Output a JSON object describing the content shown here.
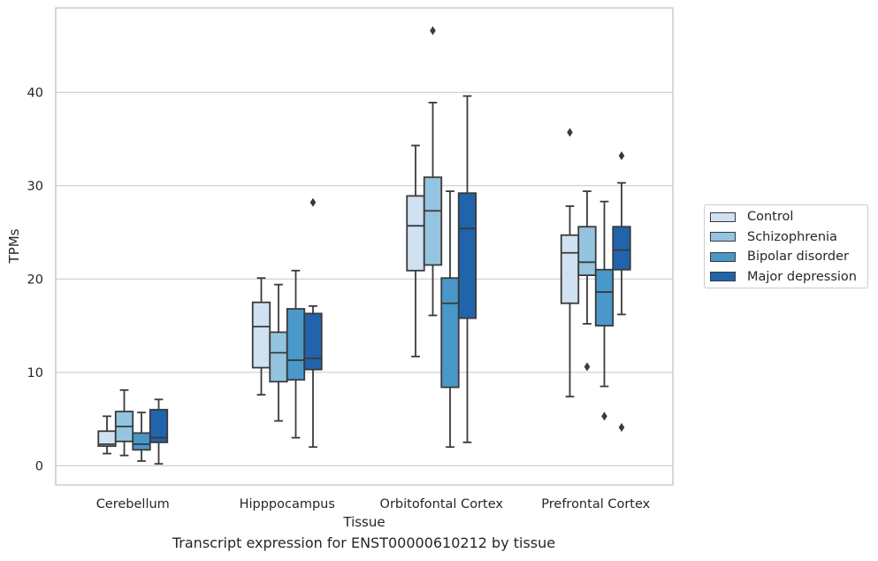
{
  "figure": {
    "caption": "Transcript expression for ENST00000610212 by tissue"
  },
  "chart_data": {
    "type": "boxplot",
    "xlabel": "Tissue",
    "ylabel": "TPMs",
    "ylim": [
      -2,
      49
    ],
    "yticks": [
      0,
      10,
      20,
      30,
      40
    ],
    "grid": "horizontal",
    "legend_position": "right",
    "categories": [
      "Cerebellum",
      "Hipppocampus",
      "Orbitofontal Cortex",
      "Prefrontal Cortex"
    ],
    "series": [
      {
        "name": "Control",
        "color": "#d0e1f2",
        "boxes": [
          {
            "whislo": 1.3,
            "q1": 2.1,
            "med": 2.3,
            "q3": 3.7,
            "whishi": 5.3,
            "fliers": []
          },
          {
            "whislo": 7.6,
            "q1": 10.5,
            "med": 14.9,
            "q3": 17.5,
            "whishi": 20.1,
            "fliers": []
          },
          {
            "whislo": 11.7,
            "q1": 20.9,
            "med": 25.7,
            "q3": 28.9,
            "whishi": 34.3,
            "fliers": []
          },
          {
            "whislo": 7.4,
            "q1": 17.4,
            "med": 22.8,
            "q3": 24.7,
            "whishi": 27.8,
            "fliers": [
              35.7
            ]
          }
        ]
      },
      {
        "name": "Schizophrenia",
        "color": "#94c4df",
        "boxes": [
          {
            "whislo": 1.1,
            "q1": 2.6,
            "med": 4.2,
            "q3": 5.8,
            "whishi": 8.1,
            "fliers": []
          },
          {
            "whislo": 4.8,
            "q1": 9.0,
            "med": 12.1,
            "q3": 14.3,
            "whishi": 19.4,
            "fliers": []
          },
          {
            "whislo": 16.1,
            "q1": 21.5,
            "med": 27.3,
            "q3": 30.9,
            "whishi": 38.9,
            "fliers": [
              46.6
            ]
          },
          {
            "whislo": 15.2,
            "q1": 20.4,
            "med": 21.8,
            "q3": 25.6,
            "whishi": 29.4,
            "fliers": [
              10.6
            ]
          }
        ]
      },
      {
        "name": "Bipolar disorder",
        "color": "#4a98c9",
        "boxes": [
          {
            "whislo": 0.5,
            "q1": 1.7,
            "med": 2.3,
            "q3": 3.5,
            "whishi": 5.7,
            "fliers": []
          },
          {
            "whislo": 3.0,
            "q1": 9.2,
            "med": 11.3,
            "q3": 16.8,
            "whishi": 20.9,
            "fliers": []
          },
          {
            "whislo": 2.0,
            "q1": 8.4,
            "med": 17.4,
            "q3": 20.1,
            "whishi": 29.4,
            "fliers": []
          },
          {
            "whislo": 8.5,
            "q1": 15.0,
            "med": 18.6,
            "q3": 21.0,
            "whishi": 28.3,
            "fliers": [
              5.3
            ]
          }
        ]
      },
      {
        "name": "Major depression",
        "color": "#2164ab",
        "boxes": [
          {
            "whislo": 0.2,
            "q1": 2.5,
            "med": 3.0,
            "q3": 6.0,
            "whishi": 7.1,
            "fliers": []
          },
          {
            "whislo": 2.0,
            "q1": 10.3,
            "med": 11.5,
            "q3": 16.3,
            "whishi": 17.1,
            "fliers": [
              28.2
            ]
          },
          {
            "whislo": 2.5,
            "q1": 15.8,
            "med": 25.4,
            "q3": 29.2,
            "whishi": 39.6,
            "fliers": []
          },
          {
            "whislo": 16.2,
            "q1": 21.0,
            "med": 23.1,
            "q3": 25.6,
            "whishi": 30.3,
            "fliers": [
              33.2,
              4.1
            ]
          }
        ]
      }
    ]
  }
}
